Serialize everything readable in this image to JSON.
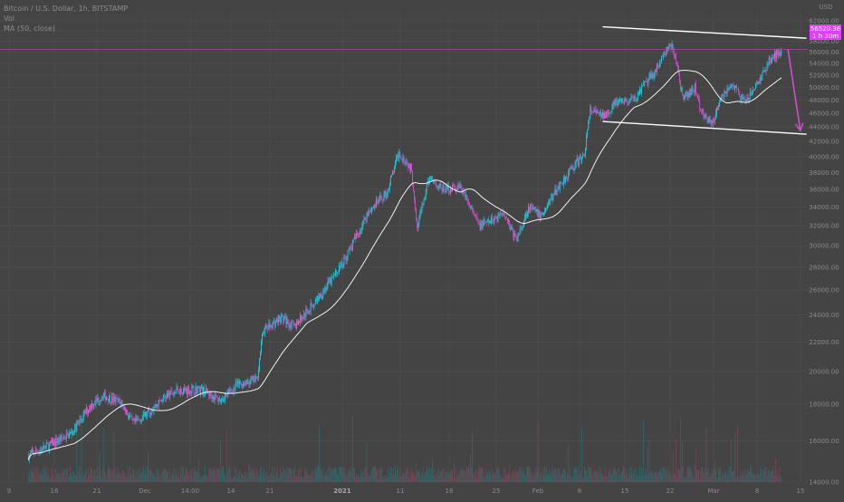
{
  "header": {
    "symbol": "Bitcoin / U.S. Dollar, 1h, BITSTAMP",
    "volume_label": "Vol",
    "ma_label": "MA (50, close)"
  },
  "price_tag": {
    "value": "56520.36",
    "sub": "1 h 30m"
  },
  "currency_label": "USD",
  "colors": {
    "background": "#444444",
    "grid": "#4f4f4f",
    "up": "#26c6da",
    "down": "#c850c0",
    "ma": "#f0f0f0",
    "channel": "#ffffff",
    "arrow": "#d24bd2",
    "price_line": "#b044b0"
  },
  "chart_data": {
    "type": "candlestick",
    "title": "Bitcoin / U.S. Dollar, 1h, BITSTAMP",
    "y_axis": {
      "scale": "log",
      "ylim": [
        14000,
        64000
      ],
      "ticks": [
        14000,
        16000,
        18000,
        20000,
        22000,
        24000,
        26000,
        28000,
        30000,
        32000,
        34000,
        36000,
        38000,
        40000,
        42000,
        44000,
        46000,
        48000,
        50000,
        52000,
        54000,
        56000,
        58000,
        60000,
        62000
      ]
    },
    "x_axis": {
      "ticks": [
        "9",
        "16",
        "21",
        "Dec",
        "14:00",
        "14",
        "21",
        "2021",
        "11",
        "18",
        "25",
        "Feb",
        "8",
        "15",
        "22",
        "Mar",
        "8",
        "15"
      ]
    },
    "close_path": [
      [
        "Nov 9",
        15250
      ],
      [
        "Nov 12",
        15700
      ],
      [
        "Nov 16",
        16400
      ],
      [
        "Nov 19",
        17900
      ],
      [
        "Nov 21",
        18500
      ],
      [
        "Nov 24",
        18100
      ],
      [
        "Nov 26",
        16900
      ],
      [
        "Nov 28",
        17400
      ],
      [
        "Dec 1",
        18400
      ],
      [
        "Dec 3",
        18800
      ],
      [
        "Dec 7",
        18900
      ],
      [
        "Dec 10",
        18200
      ],
      [
        "Dec 13",
        19200
      ],
      [
        "Dec 16",
        19500
      ],
      [
        "Dec 17",
        22800
      ],
      [
        "Dec 20",
        23800
      ],
      [
        "Dec 22",
        23100
      ],
      [
        "Dec 25",
        24800
      ],
      [
        "Dec 28",
        26800
      ],
      [
        "Dec 30",
        28500
      ],
      [
        "Jan 2",
        32000
      ],
      [
        "Jan 3",
        33500
      ],
      [
        "Jan 6",
        35500
      ],
      [
        "Jan 8",
        40500
      ],
      [
        "Jan 10",
        38500
      ],
      [
        "Jan 11",
        32000
      ],
      [
        "Jan 13",
        37500
      ],
      [
        "Jan 15",
        36000
      ],
      [
        "Jan 18",
        36200
      ],
      [
        "Jan 21",
        32000
      ],
      [
        "Jan 23",
        32500
      ],
      [
        "Jan 25",
        33500
      ],
      [
        "Jan 27",
        30500
      ],
      [
        "Jan 29",
        34000
      ],
      [
        "Jan 31",
        33000
      ],
      [
        "Feb 3",
        36500
      ],
      [
        "Feb 5",
        38500
      ],
      [
        "Feb 7",
        40200
      ],
      [
        "Feb 8",
        46500
      ],
      [
        "Feb 10",
        45500
      ],
      [
        "Feb 12",
        47500
      ],
      [
        "Feb 15",
        48000
      ],
      [
        "Feb 18",
        52000
      ],
      [
        "Feb 21",
        57500
      ],
      [
        "Feb 22",
        54000
      ],
      [
        "Feb 23",
        48000
      ],
      [
        "Feb 25",
        50000
      ],
      [
        "Feb 26",
        46000
      ],
      [
        "Feb 28",
        44500
      ],
      [
        "Mar 1",
        48500
      ],
      [
        "Mar 3",
        50500
      ],
      [
        "Mar 5",
        47500
      ],
      [
        "Mar 7",
        50500
      ],
      [
        "Mar 9",
        54500
      ],
      [
        "Mar 11",
        56500
      ]
    ],
    "channel": {
      "upper": [
        [
          "Feb 10",
          60800
        ],
        [
          "Mar 15",
          58600
        ]
      ],
      "lower": [
        [
          "Feb 10",
          44800
        ],
        [
          "Mar 15",
          43000
        ]
      ]
    },
    "projection_arrow": [
      [
        "Mar 12",
        56500
      ],
      [
        "Mar 14",
        43500
      ]
    ],
    "price_line": 56520.36
  }
}
